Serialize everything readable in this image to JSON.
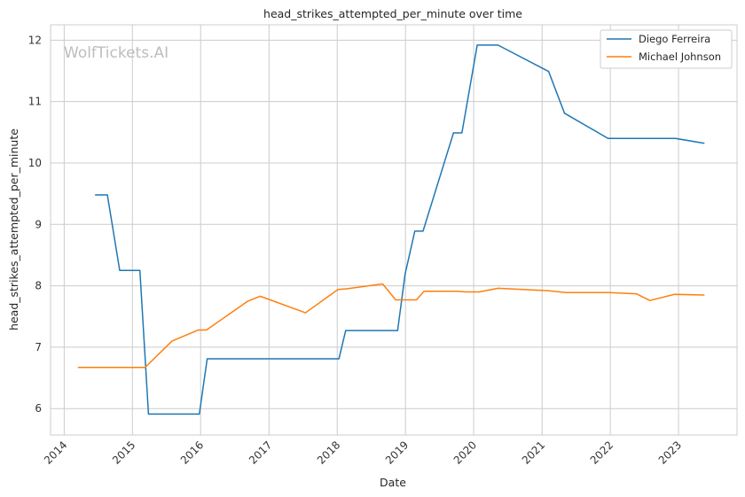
{
  "chart_data": {
    "type": "line",
    "title": "head_strikes_attempted_per_minute over time",
    "xlabel": "Date",
    "ylabel": "head_strikes_attempted_per_minute",
    "watermark": "WolfTickets.AI",
    "xlim": [
      "2013-10-20",
      "2023-11-10"
    ],
    "ylim": [
      5.57,
      12.25
    ],
    "x_ticks": [
      "2014",
      "2015",
      "2016",
      "2017",
      "2018",
      "2019",
      "2020",
      "2021",
      "2022",
      "2023"
    ],
    "y_ticks": [
      6,
      7,
      8,
      9,
      10,
      11,
      12
    ],
    "grid": true,
    "legend_position": "top-right",
    "series": [
      {
        "name": "Diego Ferreira",
        "color": "#1f77b4",
        "points": [
          [
            "2014-06-15",
            9.48
          ],
          [
            "2014-08-20",
            9.48
          ],
          [
            "2014-10-25",
            8.25
          ],
          [
            "2015-02-10",
            8.25
          ],
          [
            "2015-03-28",
            5.91
          ],
          [
            "2015-12-25",
            5.91
          ],
          [
            "2016-02-05",
            6.81
          ],
          [
            "2018-01-10",
            6.81
          ],
          [
            "2018-02-15",
            7.27
          ],
          [
            "2018-11-20",
            7.27
          ],
          [
            "2018-12-30",
            8.19
          ],
          [
            "2019-02-20",
            8.89
          ],
          [
            "2019-04-05",
            8.89
          ],
          [
            "2019-09-15",
            10.49
          ],
          [
            "2019-10-30",
            10.49
          ],
          [
            "2020-01-20",
            11.92
          ],
          [
            "2020-05-10",
            11.92
          ],
          [
            "2021-02-05",
            11.49
          ],
          [
            "2021-05-01",
            10.81
          ],
          [
            "2021-12-20",
            10.4
          ],
          [
            "2022-12-15",
            10.4
          ],
          [
            "2023-05-20",
            10.32
          ]
        ]
      },
      {
        "name": "Michael Johnson",
        "color": "#ff7f0e",
        "points": [
          [
            "2014-03-15",
            6.67
          ],
          [
            "2015-03-10",
            6.67
          ],
          [
            "2015-08-01",
            7.1
          ],
          [
            "2015-12-20",
            7.28
          ],
          [
            "2016-02-01",
            7.28
          ],
          [
            "2016-09-10",
            7.75
          ],
          [
            "2016-11-15",
            7.83
          ],
          [
            "2017-07-15",
            7.56
          ],
          [
            "2018-01-05",
            7.94
          ],
          [
            "2018-02-20",
            7.95
          ],
          [
            "2018-09-01",
            8.03
          ],
          [
            "2018-11-10",
            7.77
          ],
          [
            "2019-03-01",
            7.77
          ],
          [
            "2019-04-10",
            7.91
          ],
          [
            "2019-10-01",
            7.91
          ],
          [
            "2019-11-20",
            7.9
          ],
          [
            "2020-02-01",
            7.9
          ],
          [
            "2020-05-10",
            7.96
          ],
          [
            "2021-02-01",
            7.92
          ],
          [
            "2021-05-10",
            7.89
          ],
          [
            "2021-12-25",
            7.89
          ],
          [
            "2022-05-20",
            7.87
          ],
          [
            "2022-08-01",
            7.76
          ],
          [
            "2022-12-10",
            7.86
          ],
          [
            "2023-05-20",
            7.85
          ]
        ]
      }
    ]
  }
}
